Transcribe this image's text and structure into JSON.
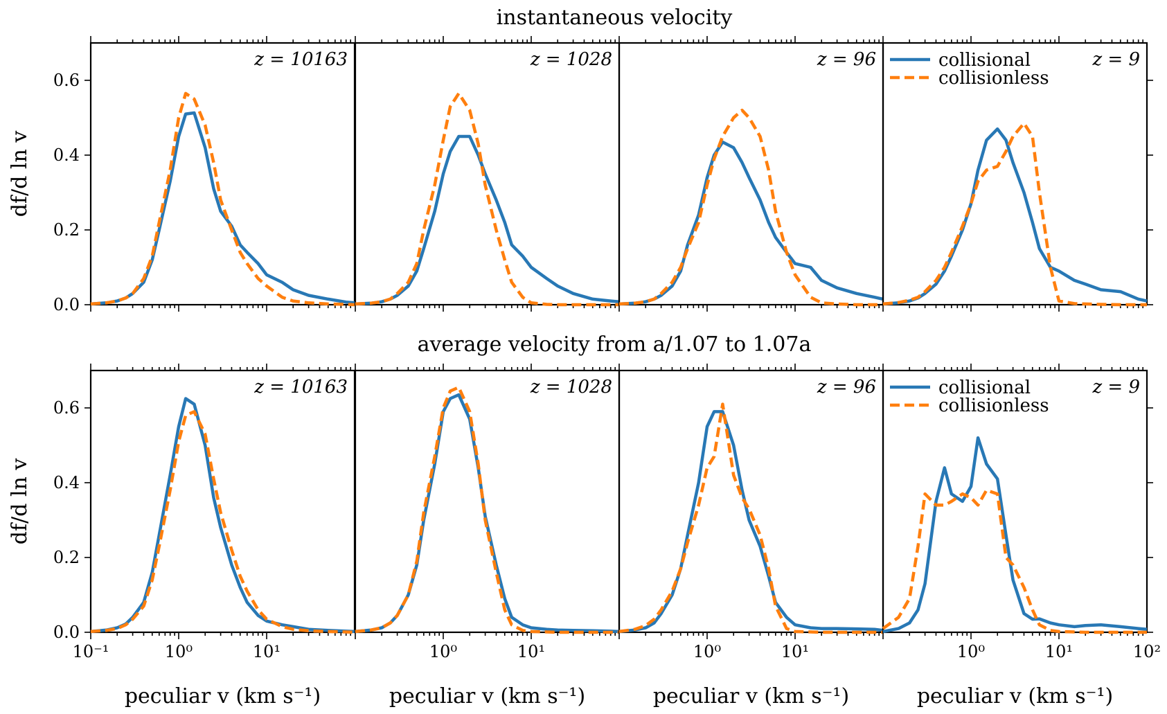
{
  "row_titles": [
    "instantaneous velocity",
    "average velocity from a/1.07 to 1.07a"
  ],
  "ylabel": "df/d ln v",
  "xlabel": "peculiar v (km s⁻¹)",
  "legend": [
    "collisional",
    "collisionless"
  ],
  "colors": {
    "collisional": "#2878b5",
    "collisionless": "#ff7f0e"
  },
  "chart_data": [
    {
      "type": "line",
      "row": 0,
      "panel": 0,
      "annotation": "z = 10163",
      "xscale": "log",
      "xlim": [
        0.1,
        100
      ],
      "ylim": [
        0,
        0.7
      ],
      "yticks": [
        "0.0",
        "0.2",
        "0.4",
        "0.6"
      ],
      "xticks": [],
      "series": [
        {
          "name": "collisional",
          "x": [
            0.1,
            0.15,
            0.2,
            0.25,
            0.3,
            0.4,
            0.5,
            0.6,
            0.8,
            1.0,
            1.2,
            1.5,
            2.0,
            2.5,
            3.0,
            4.0,
            5.0,
            6.0,
            8.0,
            10,
            15,
            20,
            30,
            50,
            80,
            100
          ],
          "y": [
            0.002,
            0.005,
            0.01,
            0.018,
            0.03,
            0.06,
            0.12,
            0.2,
            0.33,
            0.45,
            0.51,
            0.513,
            0.42,
            0.31,
            0.25,
            0.21,
            0.16,
            0.14,
            0.11,
            0.08,
            0.06,
            0.04,
            0.025,
            0.015,
            0.007,
            0.005
          ]
        },
        {
          "name": "collisionless",
          "x": [
            0.1,
            0.15,
            0.2,
            0.25,
            0.3,
            0.4,
            0.5,
            0.6,
            0.8,
            1.0,
            1.2,
            1.5,
            2.0,
            2.5,
            3.0,
            4.0,
            5.0,
            6.0,
            8.0,
            10,
            15,
            20,
            30,
            50,
            80,
            100
          ],
          "y": [
            0.002,
            0.005,
            0.01,
            0.018,
            0.03,
            0.07,
            0.13,
            0.22,
            0.36,
            0.5,
            0.565,
            0.55,
            0.48,
            0.38,
            0.28,
            0.2,
            0.14,
            0.11,
            0.07,
            0.05,
            0.02,
            0.01,
            0.005,
            0.002,
            0.001,
            0.0
          ]
        }
      ]
    },
    {
      "type": "line",
      "row": 0,
      "panel": 1,
      "annotation": "z = 1028",
      "xscale": "log",
      "xlim": [
        0.1,
        100
      ],
      "ylim": [
        0,
        0.7
      ],
      "yticks": [],
      "xticks": [],
      "series": [
        {
          "name": "collisional",
          "x": [
            0.1,
            0.15,
            0.2,
            0.25,
            0.3,
            0.4,
            0.5,
            0.6,
            0.8,
            1.0,
            1.2,
            1.5,
            2.0,
            2.5,
            3.0,
            4.0,
            5.0,
            6.0,
            8.0,
            10,
            15,
            20,
            30,
            50,
            80,
            100
          ],
          "y": [
            0.002,
            0.004,
            0.008,
            0.015,
            0.025,
            0.05,
            0.09,
            0.15,
            0.25,
            0.35,
            0.41,
            0.45,
            0.45,
            0.4,
            0.35,
            0.28,
            0.22,
            0.16,
            0.13,
            0.1,
            0.07,
            0.05,
            0.03,
            0.015,
            0.01,
            0.008
          ]
        },
        {
          "name": "collisionless",
          "x": [
            0.1,
            0.15,
            0.2,
            0.25,
            0.3,
            0.4,
            0.5,
            0.6,
            0.8,
            1.0,
            1.2,
            1.5,
            2.0,
            2.5,
            3.0,
            4.0,
            5.0,
            6.0,
            8.0,
            10,
            15,
            20,
            30,
            50,
            80,
            100
          ],
          "y": [
            0.002,
            0.004,
            0.008,
            0.015,
            0.03,
            0.06,
            0.11,
            0.2,
            0.32,
            0.44,
            0.53,
            0.565,
            0.52,
            0.43,
            0.32,
            0.2,
            0.12,
            0.06,
            0.02,
            0.005,
            0.001,
            0.0,
            0.0,
            0.0,
            0.0,
            0.0
          ]
        }
      ]
    },
    {
      "type": "line",
      "row": 0,
      "panel": 2,
      "annotation": "z = 96",
      "xscale": "log",
      "xlim": [
        0.1,
        100
      ],
      "ylim": [
        0,
        0.7
      ],
      "yticks": [],
      "xticks": [],
      "series": [
        {
          "name": "collisional",
          "x": [
            0.1,
            0.15,
            0.2,
            0.25,
            0.3,
            0.4,
            0.5,
            0.6,
            0.8,
            1.0,
            1.2,
            1.5,
            2.0,
            2.5,
            3.0,
            4.0,
            5.0,
            6.0,
            8.0,
            10,
            15,
            20,
            30,
            50,
            80,
            100
          ],
          "y": [
            0.002,
            0.004,
            0.008,
            0.015,
            0.025,
            0.05,
            0.09,
            0.16,
            0.24,
            0.34,
            0.4,
            0.435,
            0.42,
            0.38,
            0.34,
            0.28,
            0.22,
            0.18,
            0.14,
            0.11,
            0.1,
            0.065,
            0.045,
            0.03,
            0.02,
            0.015
          ]
        },
        {
          "name": "collisionless",
          "x": [
            0.1,
            0.15,
            0.2,
            0.25,
            0.3,
            0.4,
            0.5,
            0.6,
            0.8,
            1.0,
            1.2,
            1.5,
            2.0,
            2.5,
            3.0,
            4.0,
            5.0,
            6.0,
            8.0,
            10,
            15,
            20,
            30,
            50,
            80,
            100
          ],
          "y": [
            0.002,
            0.004,
            0.008,
            0.015,
            0.03,
            0.06,
            0.1,
            0.15,
            0.22,
            0.32,
            0.39,
            0.45,
            0.5,
            0.52,
            0.5,
            0.45,
            0.36,
            0.25,
            0.14,
            0.08,
            0.02,
            0.005,
            0.002,
            0.0,
            0.0,
            0.0
          ]
        }
      ]
    },
    {
      "type": "line",
      "row": 0,
      "panel": 3,
      "annotation": "z = 9",
      "xscale": "log",
      "xlim": [
        0.1,
        100
      ],
      "ylim": [
        0,
        0.7
      ],
      "yticks": [],
      "xticks": [],
      "series": [
        {
          "name": "collisional",
          "x": [
            0.1,
            0.15,
            0.2,
            0.25,
            0.3,
            0.4,
            0.5,
            0.6,
            0.8,
            1.0,
            1.2,
            1.5,
            2.0,
            2.5,
            3.0,
            4.0,
            5.0,
            6.0,
            8.0,
            10,
            15,
            20,
            30,
            50,
            80,
            100
          ],
          "y": [
            0.002,
            0.005,
            0.01,
            0.018,
            0.03,
            0.055,
            0.09,
            0.13,
            0.2,
            0.27,
            0.36,
            0.44,
            0.47,
            0.44,
            0.38,
            0.3,
            0.22,
            0.15,
            0.1,
            0.09,
            0.065,
            0.055,
            0.04,
            0.035,
            0.015,
            0.01
          ]
        },
        {
          "name": "collisionless",
          "x": [
            0.1,
            0.15,
            0.2,
            0.25,
            0.3,
            0.4,
            0.5,
            0.6,
            0.8,
            1.0,
            1.2,
            1.5,
            2.0,
            2.5,
            3.0,
            4.0,
            5.0,
            6.0,
            8.0,
            10,
            15,
            20,
            30,
            50,
            80,
            100
          ],
          "y": [
            0.002,
            0.006,
            0.012,
            0.02,
            0.035,
            0.065,
            0.1,
            0.14,
            0.21,
            0.27,
            0.33,
            0.36,
            0.37,
            0.41,
            0.45,
            0.485,
            0.45,
            0.3,
            0.1,
            0.01,
            0.003,
            0.002,
            0.001,
            0.0,
            0.0,
            0.0
          ]
        }
      ]
    },
    {
      "type": "line",
      "row": 1,
      "panel": 0,
      "annotation": "z = 10163",
      "xscale": "log",
      "xlim": [
        0.1,
        100
      ],
      "ylim": [
        0,
        0.7
      ],
      "yticks": [
        "0.0",
        "0.2",
        "0.4",
        "0.6"
      ],
      "xticks": [
        "10⁻¹",
        "10⁰",
        "10¹"
      ],
      "series": [
        {
          "name": "collisional",
          "x": [
            0.1,
            0.15,
            0.2,
            0.25,
            0.3,
            0.4,
            0.5,
            0.6,
            0.8,
            1.0,
            1.2,
            1.5,
            2.0,
            2.5,
            3.0,
            4.0,
            5.0,
            6.0,
            8.0,
            10,
            15,
            20,
            30,
            50,
            80,
            100
          ],
          "y": [
            0.002,
            0.006,
            0.012,
            0.022,
            0.04,
            0.08,
            0.16,
            0.26,
            0.42,
            0.55,
            0.625,
            0.61,
            0.5,
            0.36,
            0.28,
            0.18,
            0.12,
            0.08,
            0.045,
            0.03,
            0.02,
            0.015,
            0.008,
            0.005,
            0.003,
            0.002
          ]
        },
        {
          "name": "collisionless",
          "x": [
            0.1,
            0.15,
            0.2,
            0.25,
            0.3,
            0.4,
            0.5,
            0.6,
            0.8,
            1.0,
            1.2,
            1.5,
            2.0,
            2.5,
            3.0,
            4.0,
            5.0,
            6.0,
            8.0,
            10,
            15,
            20,
            30,
            50,
            80,
            100
          ],
          "y": [
            0.002,
            0.005,
            0.01,
            0.02,
            0.035,
            0.07,
            0.14,
            0.23,
            0.38,
            0.51,
            0.58,
            0.59,
            0.53,
            0.41,
            0.32,
            0.22,
            0.15,
            0.11,
            0.06,
            0.035,
            0.015,
            0.008,
            0.004,
            0.002,
            0.001,
            0.0
          ]
        }
      ]
    },
    {
      "type": "line",
      "row": 1,
      "panel": 1,
      "annotation": "z = 1028",
      "xscale": "log",
      "xlim": [
        0.1,
        100
      ],
      "ylim": [
        0,
        0.7
      ],
      "yticks": [],
      "xticks": [
        "10⁰",
        "10¹"
      ],
      "series": [
        {
          "name": "collisional",
          "x": [
            0.1,
            0.15,
            0.2,
            0.25,
            0.3,
            0.4,
            0.5,
            0.6,
            0.8,
            1.0,
            1.2,
            1.5,
            2.0,
            2.5,
            3.0,
            4.0,
            5.0,
            6.0,
            8.0,
            10,
            15,
            20,
            30,
            50,
            80,
            100
          ],
          "y": [
            0.002,
            0.006,
            0.012,
            0.025,
            0.045,
            0.1,
            0.18,
            0.3,
            0.45,
            0.59,
            0.625,
            0.635,
            0.57,
            0.44,
            0.31,
            0.18,
            0.09,
            0.04,
            0.02,
            0.012,
            0.008,
            0.006,
            0.005,
            0.004,
            0.003,
            0.002
          ]
        },
        {
          "name": "collisionless",
          "x": [
            0.1,
            0.15,
            0.2,
            0.25,
            0.3,
            0.4,
            0.5,
            0.6,
            0.8,
            1.0,
            1.2,
            1.5,
            2.0,
            2.5,
            3.0,
            4.0,
            5.0,
            6.0,
            8.0,
            10,
            15,
            20,
            30,
            50,
            80,
            100
          ],
          "y": [
            0.002,
            0.006,
            0.012,
            0.025,
            0.045,
            0.1,
            0.19,
            0.32,
            0.47,
            0.6,
            0.645,
            0.655,
            0.59,
            0.45,
            0.3,
            0.16,
            0.06,
            0.02,
            0.005,
            0.002,
            0.001,
            0.0,
            0.0,
            0.0,
            0.0,
            0.0
          ]
        }
      ]
    },
    {
      "type": "line",
      "row": 1,
      "panel": 2,
      "annotation": "z = 96",
      "xscale": "log",
      "xlim": [
        0.1,
        100
      ],
      "ylim": [
        0,
        0.7
      ],
      "yticks": [],
      "xticks": [
        "10⁰",
        "10¹"
      ],
      "series": [
        {
          "name": "collisional",
          "x": [
            0.1,
            0.15,
            0.2,
            0.25,
            0.3,
            0.4,
            0.5,
            0.6,
            0.8,
            1.0,
            1.2,
            1.5,
            2.0,
            2.5,
            3.0,
            4.0,
            5.0,
            6.0,
            8.0,
            10,
            15,
            20,
            30,
            50,
            80,
            100
          ],
          "y": [
            0.002,
            0.006,
            0.012,
            0.025,
            0.05,
            0.1,
            0.17,
            0.26,
            0.4,
            0.55,
            0.59,
            0.59,
            0.5,
            0.38,
            0.3,
            0.23,
            0.15,
            0.08,
            0.04,
            0.02,
            0.012,
            0.01,
            0.01,
            0.009,
            0.008,
            0.005
          ]
        },
        {
          "name": "collisionless",
          "x": [
            0.1,
            0.15,
            0.2,
            0.25,
            0.3,
            0.4,
            0.5,
            0.6,
            0.8,
            1.0,
            1.2,
            1.5,
            2.0,
            2.5,
            3.0,
            4.0,
            5.0,
            6.0,
            8.0,
            10,
            15,
            20,
            30,
            50,
            80,
            100
          ],
          "y": [
            0.002,
            0.008,
            0.018,
            0.035,
            0.06,
            0.11,
            0.17,
            0.24,
            0.34,
            0.44,
            0.47,
            0.61,
            0.42,
            0.36,
            0.33,
            0.26,
            0.17,
            0.07,
            0.01,
            0.002,
            0.001,
            0.0,
            0.0,
            0.0,
            0.0,
            0.0
          ]
        }
      ]
    },
    {
      "type": "line",
      "row": 1,
      "panel": 3,
      "annotation": "z = 9",
      "xscale": "log",
      "xlim": [
        0.1,
        100
      ],
      "ylim": [
        0,
        0.7
      ],
      "yticks": [],
      "xticks": [
        "10⁰",
        "10¹",
        "10²"
      ],
      "series": [
        {
          "name": "collisional",
          "x": [
            0.1,
            0.15,
            0.2,
            0.25,
            0.3,
            0.4,
            0.5,
            0.6,
            0.8,
            1.0,
            1.2,
            1.5,
            2.0,
            2.5,
            3.0,
            4.0,
            5.0,
            6.0,
            8.0,
            10,
            15,
            20,
            30,
            50,
            80,
            100
          ],
          "y": [
            0.002,
            0.01,
            0.025,
            0.06,
            0.13,
            0.35,
            0.44,
            0.37,
            0.35,
            0.39,
            0.52,
            0.45,
            0.41,
            0.26,
            0.14,
            0.05,
            0.035,
            0.036,
            0.025,
            0.02,
            0.015,
            0.018,
            0.02,
            0.015,
            0.01,
            0.008
          ]
        },
        {
          "name": "collisionless",
          "x": [
            0.1,
            0.15,
            0.2,
            0.25,
            0.3,
            0.4,
            0.5,
            0.6,
            0.8,
            1.0,
            1.2,
            1.5,
            2.0,
            2.5,
            3.0,
            4.0,
            5.0,
            6.0,
            8.0,
            10,
            15,
            20,
            30,
            50,
            80,
            100
          ],
          "y": [
            0.01,
            0.04,
            0.09,
            0.23,
            0.37,
            0.34,
            0.34,
            0.35,
            0.37,
            0.36,
            0.34,
            0.38,
            0.37,
            0.2,
            0.18,
            0.12,
            0.06,
            0.02,
            0.005,
            0.002,
            0.001,
            0.0,
            0.0,
            0.0,
            0.0,
            0.0
          ]
        }
      ]
    }
  ]
}
